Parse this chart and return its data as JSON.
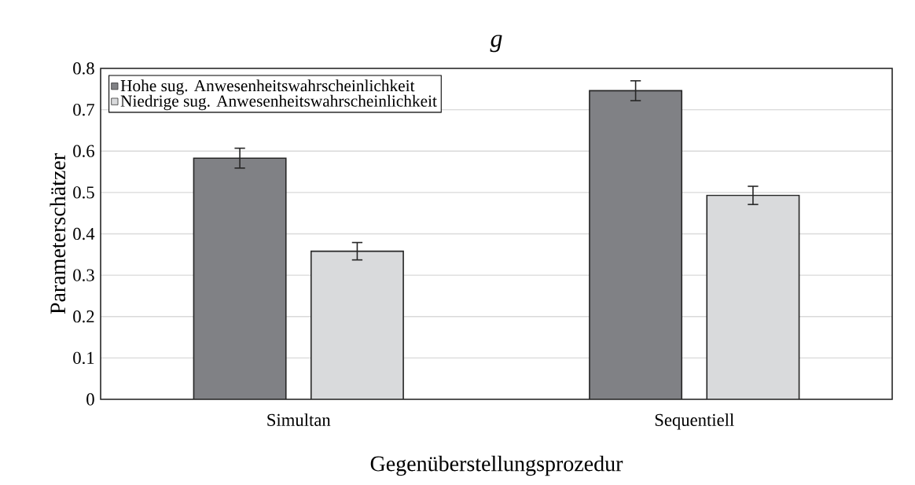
{
  "chart_data": {
    "type": "bar",
    "title": "g",
    "xlabel": "Gegenüberstellungsprozedur",
    "ylabel": "Parameterschätzer",
    "categories": [
      "Simultan",
      "Sequentiell"
    ],
    "series": [
      {
        "name": "Hohe sug. Anwesenheitswahrscheinlichkeit",
        "color": "#808185",
        "values": [
          0.583,
          0.746
        ],
        "errors": [
          0.024,
          0.024
        ]
      },
      {
        "name": "Niedrige sug. Anwesenheitswahrscheinlichkeit",
        "color": "#d9dadc",
        "values": [
          0.358,
          0.493
        ],
        "errors": [
          0.021,
          0.022
        ]
      }
    ],
    "ylim": [
      0,
      0.8
    ],
    "yticks": [
      0,
      0.1,
      0.2,
      0.3,
      0.4,
      0.5,
      0.6,
      0.7,
      0.8
    ],
    "grid": "y",
    "legend": "top left"
  }
}
